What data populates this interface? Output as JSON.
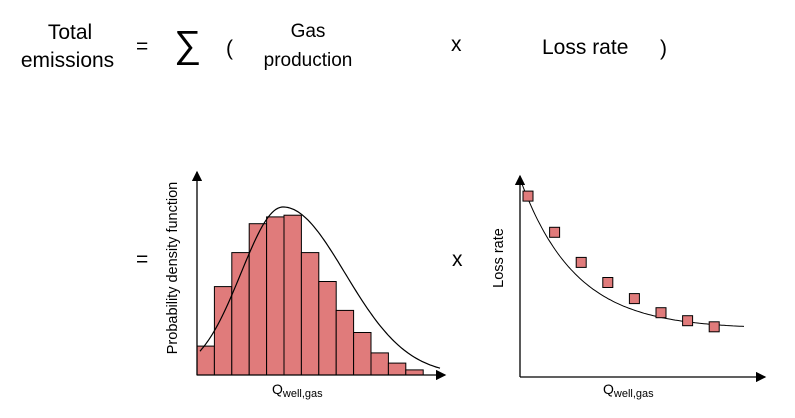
{
  "equation": {
    "lhs_line1": "Total",
    "lhs_line2": "emissions",
    "equals": "=",
    "sigma": "∑",
    "paren_open": "(",
    "gas_line1": "Gas",
    "gas_line2": "production",
    "times": "x",
    "loss_rate": "Loss rate",
    "paren_close": ")"
  },
  "row2": {
    "equals": "=",
    "times": "x"
  },
  "chart_data": [
    {
      "type": "bar",
      "ylabel": "Probability density function",
      "xlabel_main": "Q",
      "xlabel_sub": "well,gas",
      "values": [
        0.17,
        0.52,
        0.72,
        0.89,
        0.93,
        0.94,
        0.72,
        0.55,
        0.38,
        0.25,
        0.13,
        0.07,
        0.03
      ],
      "curve": "fitted density curve",
      "bar_color": "#e07b7b",
      "ylim": [
        0,
        1
      ]
    },
    {
      "type": "scatter",
      "ylabel": "Loss rate",
      "xlabel_main": "Q",
      "xlabel_sub": "well,gas",
      "x": [
        1,
        2,
        3,
        4,
        5,
        6,
        7,
        8
      ],
      "y": [
        0.9,
        0.72,
        0.57,
        0.47,
        0.39,
        0.32,
        0.28,
        0.25
      ],
      "curve": "decaying fit",
      "marker_color": "#e07b7b",
      "ylim": [
        0,
        1
      ]
    }
  ]
}
